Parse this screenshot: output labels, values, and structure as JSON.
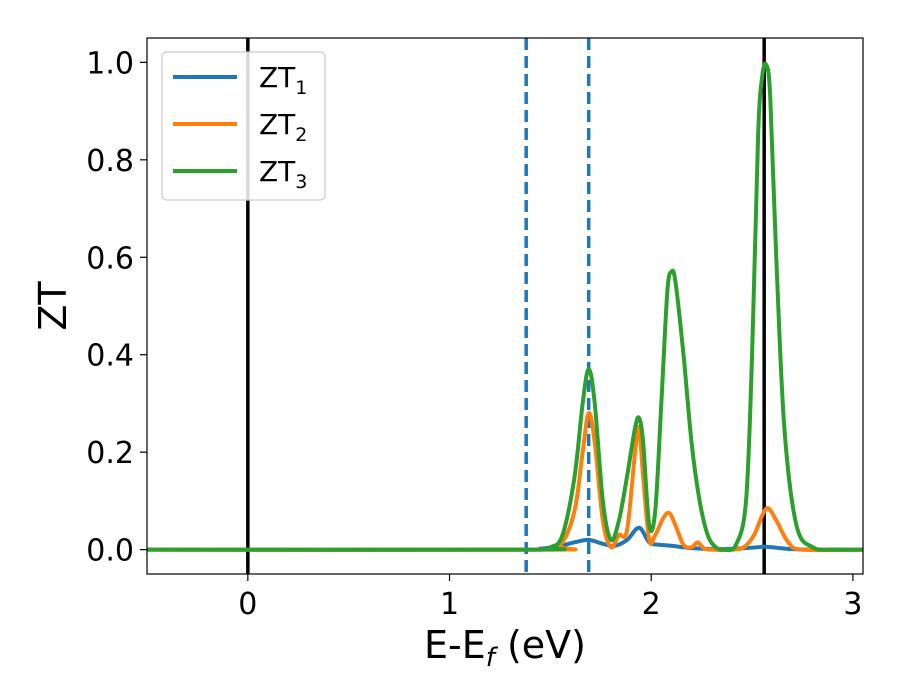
{
  "chart_data": {
    "type": "line",
    "title": "",
    "xlabel": {
      "main": "E-E",
      "sub": "f",
      "rest": " (eV)"
    },
    "ylabel": "ZT",
    "xlim": [
      -0.5,
      3.05
    ],
    "ylim": [
      -0.05,
      1.05
    ],
    "x_ticks": [
      0,
      1,
      2,
      3
    ],
    "x_tick_labels": [
      "0",
      "1",
      "2",
      "3"
    ],
    "y_ticks": [
      0.0,
      0.2,
      0.4,
      0.6,
      0.8,
      1.0
    ],
    "y_tick_labels": [
      "0.0",
      "0.2",
      "0.4",
      "0.6",
      "0.8",
      "1.0"
    ],
    "grid": false,
    "legend_position": "top-left",
    "series": [
      {
        "name": "ZT",
        "name_sub": "1",
        "color": "#1f77b4",
        "x": [
          -0.5,
          1.3,
          1.45,
          1.55,
          1.62,
          1.69,
          1.76,
          1.82,
          1.88,
          1.94,
          1.99,
          2.04,
          2.1,
          2.2,
          2.35,
          2.5,
          2.56,
          2.62,
          2.7,
          2.8,
          3.05
        ],
        "y": [
          0,
          0,
          0.002,
          0.008,
          0.015,
          0.02,
          0.012,
          0.008,
          0.02,
          0.045,
          0.015,
          0.01,
          0.008,
          0.003,
          0.001,
          0.004,
          0.006,
          0.004,
          0.001,
          0,
          0
        ]
      },
      {
        "name": "ZT",
        "name_sub": "2",
        "color": "#ff7f0e",
        "x": [
          -0.5,
          1.45,
          1.55,
          1.62,
          1.66,
          1.69,
          1.72,
          1.76,
          1.8,
          1.84,
          1.88,
          1.92,
          1.94,
          1.96,
          1.99,
          2.02,
          2.06,
          2.09,
          2.12,
          2.16,
          2.2,
          2.23,
          2.26,
          2.3,
          2.4,
          2.46,
          2.51,
          2.55,
          2.58,
          2.62,
          2.68,
          2.75,
          3.05
        ],
        "y": [
          0,
          0,
          0.01,
          0.08,
          0.2,
          0.28,
          0.22,
          0.06,
          0.005,
          0.03,
          0.04,
          0.2,
          0.25,
          0.15,
          0.02,
          0.03,
          0.065,
          0.075,
          0.05,
          0.01,
          0.005,
          0.015,
          0.003,
          0,
          0,
          0.005,
          0.03,
          0.07,
          0.085,
          0.06,
          0.015,
          0,
          0
        ]
      },
      {
        "name": "ZT",
        "name_sub": "3",
        "color": "#2ca02c",
        "x": [
          -0.5,
          1.4,
          1.5,
          1.56,
          1.62,
          1.66,
          1.69,
          1.72,
          1.76,
          1.8,
          1.84,
          1.88,
          1.92,
          1.94,
          1.96,
          1.99,
          2.02,
          2.05,
          2.08,
          2.1,
          2.12,
          2.16,
          2.2,
          2.24,
          2.28,
          2.32,
          2.36,
          2.42,
          2.47,
          2.5,
          2.53,
          2.55,
          2.57,
          2.59,
          2.62,
          2.66,
          2.72,
          2.8,
          2.9,
          3.05
        ],
        "y": [
          0,
          0,
          0.005,
          0.03,
          0.15,
          0.3,
          0.37,
          0.3,
          0.1,
          0.02,
          0.06,
          0.15,
          0.25,
          0.27,
          0.22,
          0.05,
          0.08,
          0.3,
          0.53,
          0.57,
          0.55,
          0.4,
          0.22,
          0.1,
          0.03,
          0.005,
          0,
          0.01,
          0.1,
          0.4,
          0.85,
          0.97,
          0.995,
          0.93,
          0.6,
          0.25,
          0.05,
          0.005,
          0,
          0
        ]
      }
    ],
    "vertical_lines": [
      {
        "x": 0,
        "style": "solid",
        "color": "#000000"
      },
      {
        "x": 2.56,
        "style": "solid",
        "color": "#000000"
      },
      {
        "x": 1.38,
        "style": "dashed",
        "color": "#1f77b4"
      },
      {
        "x": 1.69,
        "style": "dashed",
        "color": "#1f77b4"
      }
    ]
  }
}
